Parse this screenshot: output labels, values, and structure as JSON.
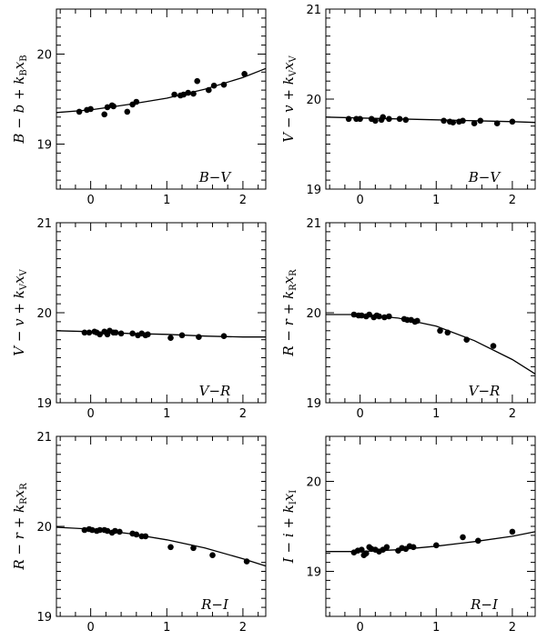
{
  "chart_data": [
    {
      "type": "scatter",
      "xlabel": "B−V",
      "ylabel": {
        "parts": [
          "B",
          " − ",
          "b",
          " + ",
          "k",
          "B",
          "x",
          "B"
        ]
      },
      "xlim": [
        -0.45,
        2.3
      ],
      "ylim": [
        18.5,
        20.5
      ],
      "x_tick_labels": [
        "0",
        "1",
        "2"
      ],
      "y_tick_labels": [
        "19",
        "20"
      ],
      "grid": false,
      "points": {
        "x": [
          -0.15,
          -0.05,
          0.0,
          0.18,
          0.22,
          0.28,
          0.3,
          0.48,
          0.55,
          0.6,
          1.1,
          1.18,
          1.22,
          1.28,
          1.35,
          1.4,
          1.55,
          1.62,
          1.75,
          2.02
        ],
        "y": [
          19.36,
          19.38,
          19.39,
          19.33,
          19.41,
          19.43,
          19.42,
          19.36,
          19.44,
          19.47,
          19.55,
          19.54,
          19.55,
          19.57,
          19.56,
          19.7,
          19.6,
          19.65,
          19.66,
          19.78
        ]
      },
      "fit_curve": {
        "x": [
          -0.45,
          0.0,
          0.5,
          1.0,
          1.5,
          2.0,
          2.3
        ],
        "y": [
          19.35,
          19.38,
          19.44,
          19.51,
          19.61,
          19.74,
          19.84
        ]
      }
    },
    {
      "type": "scatter",
      "xlabel": "B−V",
      "ylabel": {
        "parts": [
          "V",
          " − ",
          "v",
          " + ",
          "k",
          "V",
          "x",
          "V"
        ]
      },
      "xlim": [
        -0.45,
        2.3
      ],
      "ylim": [
        19.0,
        21.0
      ],
      "x_tick_labels": [
        "0",
        "1",
        "2"
      ],
      "y_tick_labels": [
        "19",
        "20",
        "21"
      ],
      "grid": false,
      "points": {
        "x": [
          -0.15,
          -0.05,
          0.0,
          0.15,
          0.2,
          0.28,
          0.3,
          0.38,
          0.52,
          0.6,
          1.1,
          1.18,
          1.22,
          1.3,
          1.35,
          1.5,
          1.58,
          1.8,
          2.0
        ],
        "y": [
          19.78,
          19.78,
          19.78,
          19.78,
          19.76,
          19.77,
          19.8,
          19.78,
          19.78,
          19.77,
          19.76,
          19.75,
          19.74,
          19.75,
          19.76,
          19.73,
          19.76,
          19.73,
          19.75
        ]
      },
      "fit_curve": {
        "x": [
          -0.45,
          0.0,
          0.5,
          1.0,
          1.5,
          2.0,
          2.3
        ],
        "y": [
          19.8,
          19.79,
          19.78,
          19.77,
          19.76,
          19.75,
          19.74
        ]
      }
    },
    {
      "type": "scatter",
      "xlabel": "V−R",
      "ylabel": {
        "parts": [
          "V",
          " − ",
          "v",
          " + ",
          "k",
          "V",
          "x",
          "V"
        ]
      },
      "xlim": [
        -0.45,
        2.3
      ],
      "ylim": [
        19.0,
        21.0
      ],
      "x_tick_labels": [
        "0",
        "1",
        "2"
      ],
      "y_tick_labels": [
        "19",
        "20",
        "21"
      ],
      "grid": false,
      "points": {
        "x": [
          -0.08,
          -0.02,
          0.05,
          0.08,
          0.12,
          0.18,
          0.22,
          0.25,
          0.3,
          0.33,
          0.4,
          0.55,
          0.62,
          0.67,
          0.72,
          0.75,
          1.05,
          1.2,
          1.42,
          1.75
        ],
        "y": [
          19.78,
          19.78,
          19.79,
          19.78,
          19.76,
          19.79,
          19.76,
          19.8,
          19.78,
          19.78,
          19.77,
          19.77,
          19.75,
          19.77,
          19.75,
          19.76,
          19.72,
          19.75,
          19.73,
          19.74
        ]
      },
      "fit_curve": {
        "x": [
          -0.45,
          0.0,
          0.5,
          1.0,
          1.5,
          2.0,
          2.3
        ],
        "y": [
          19.8,
          19.79,
          19.77,
          19.76,
          19.74,
          19.73,
          19.73
        ]
      }
    },
    {
      "type": "scatter",
      "xlabel": "V−R",
      "ylabel": {
        "parts": [
          "R",
          " − ",
          "r",
          " + ",
          "k",
          "R",
          "x",
          "R"
        ]
      },
      "xlim": [
        -0.45,
        2.3
      ],
      "ylim": [
        19.0,
        21.0
      ],
      "x_tick_labels": [
        "0",
        "1",
        "2"
      ],
      "y_tick_labels": [
        "19",
        "20",
        "21"
      ],
      "grid": false,
      "points": {
        "x": [
          -0.08,
          -0.02,
          0.02,
          0.08,
          0.12,
          0.18,
          0.22,
          0.25,
          0.32,
          0.38,
          0.58,
          0.62,
          0.67,
          0.72,
          0.75,
          1.05,
          1.15,
          1.4,
          1.75
        ],
        "y": [
          19.98,
          19.97,
          19.97,
          19.96,
          19.98,
          19.95,
          19.97,
          19.96,
          19.95,
          19.96,
          19.93,
          19.92,
          19.92,
          19.9,
          19.91,
          19.8,
          19.78,
          19.7,
          19.63
        ]
      },
      "fit_curve": {
        "x": [
          -0.45,
          0.0,
          0.5,
          1.0,
          1.5,
          2.0,
          2.3
        ],
        "y": [
          19.98,
          19.98,
          19.94,
          19.85,
          19.69,
          19.48,
          19.32
        ]
      }
    },
    {
      "type": "scatter",
      "xlabel": "R−I",
      "ylabel": {
        "parts": [
          "R",
          " − ",
          "r",
          " + ",
          "k",
          "R",
          "x",
          "R"
        ]
      },
      "xlim": [
        -0.45,
        2.3
      ],
      "ylim": [
        19.0,
        21.0
      ],
      "x_tick_labels": [
        "0",
        "1",
        "2"
      ],
      "y_tick_labels": [
        "19",
        "20",
        "21"
      ],
      "grid": false,
      "points": {
        "x": [
          -0.08,
          -0.02,
          0.02,
          0.08,
          0.12,
          0.18,
          0.22,
          0.28,
          0.32,
          0.38,
          0.55,
          0.6,
          0.67,
          0.72,
          1.05,
          1.35,
          1.6,
          2.05
        ],
        "y": [
          19.96,
          19.97,
          19.96,
          19.95,
          19.96,
          19.96,
          19.95,
          19.93,
          19.95,
          19.94,
          19.92,
          19.91,
          19.89,
          19.89,
          19.77,
          19.76,
          19.68,
          19.61
        ]
      },
      "fit_curve": {
        "x": [
          -0.45,
          0.0,
          0.5,
          1.0,
          1.5,
          2.0,
          2.3
        ],
        "y": [
          19.99,
          19.97,
          19.92,
          19.85,
          19.76,
          19.64,
          19.56
        ]
      }
    },
    {
      "type": "scatter",
      "xlabel": "R−I",
      "ylabel": {
        "parts": [
          "I",
          " − ",
          "i",
          " + ",
          "k",
          "I",
          "x",
          "I"
        ]
      },
      "xlim": [
        -0.45,
        2.3
      ],
      "ylim": [
        18.5,
        20.5
      ],
      "x_tick_labels": [
        "0",
        "1",
        "2"
      ],
      "y_tick_labels": [
        "19",
        "20"
      ],
      "grid": false,
      "points": {
        "x": [
          -0.08,
          -0.03,
          0.02,
          0.05,
          0.08,
          0.12,
          0.15,
          0.2,
          0.25,
          0.3,
          0.35,
          0.5,
          0.55,
          0.6,
          0.65,
          0.7,
          1.0,
          1.35,
          1.55,
          2.0
        ],
        "y": [
          19.21,
          19.23,
          19.24,
          19.18,
          19.2,
          19.27,
          19.25,
          19.24,
          19.22,
          19.24,
          19.27,
          19.23,
          19.26,
          19.25,
          19.28,
          19.27,
          19.29,
          19.38,
          19.34,
          19.44
        ]
      },
      "fit_curve": {
        "x": [
          -0.45,
          0.0,
          0.5,
          1.0,
          1.5,
          2.0,
          2.3
        ],
        "y": [
          19.22,
          19.22,
          19.24,
          19.28,
          19.33,
          19.39,
          19.44
        ]
      }
    }
  ]
}
